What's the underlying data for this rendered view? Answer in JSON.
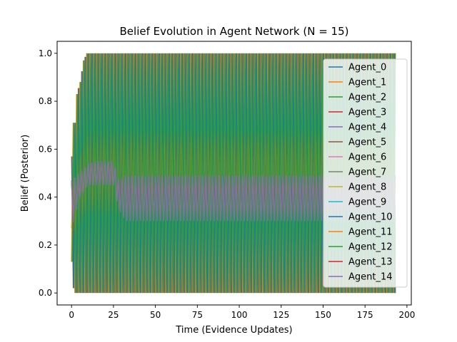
{
  "chart_data": {
    "type": "line",
    "title": "Belief Evolution in Agent Network (N = 15)",
    "xlabel": "Time (Evidence Updates)",
    "ylabel": "Belief (Posterior)",
    "xlim": [
      -8.6,
      202.6
    ],
    "ylim": [
      -0.05,
      1.05
    ],
    "xticks": [
      0,
      25,
      50,
      75,
      100,
      125,
      150,
      175,
      200
    ],
    "xtick_labels": [
      "0",
      "25",
      "50",
      "75",
      "100",
      "125",
      "150",
      "175",
      "200"
    ],
    "yticks": [
      0.0,
      0.2,
      0.4,
      0.6,
      0.8,
      1.0
    ],
    "ytick_labels": [
      "0.0",
      "0.2",
      "0.4",
      "0.6",
      "0.8",
      "1.0"
    ],
    "grid": false,
    "legend_position": "right",
    "x_range": [
      0,
      193
    ],
    "series": [
      {
        "name": "Agent_0",
        "color": "#1f77b4"
      },
      {
        "name": "Agent_1",
        "color": "#ff7f0e"
      },
      {
        "name": "Agent_2",
        "color": "#2ca02c"
      },
      {
        "name": "Agent_3",
        "color": "#d62728"
      },
      {
        "name": "Agent_4",
        "color": "#9467bd"
      },
      {
        "name": "Agent_5",
        "color": "#8c564b"
      },
      {
        "name": "Agent_6",
        "color": "#e377c2"
      },
      {
        "name": "Agent_7",
        "color": "#7f7f7f"
      },
      {
        "name": "Agent_8",
        "color": "#bcbd22"
      },
      {
        "name": "Agent_9",
        "color": "#17becf"
      },
      {
        "name": "Agent_10",
        "color": "#1f77b4"
      },
      {
        "name": "Agent_11",
        "color": "#ff7f0e"
      },
      {
        "name": "Agent_12",
        "color": "#2ca02c"
      },
      {
        "name": "Agent_13",
        "color": "#d62728"
      },
      {
        "name": "Agent_14",
        "color": "#9467bd"
      }
    ],
    "envelope_outer": [
      {
        "x": 0,
        "low": 0.13,
        "high": 0.57
      },
      {
        "x": 1,
        "low": 0.02,
        "high": 0.71
      },
      {
        "x": 2,
        "low": 0.0,
        "high": 0.71
      },
      {
        "x": 3,
        "low": 0.0,
        "high": 0.83
      },
      {
        "x": 5,
        "low": 0.0,
        "high": 0.88
      },
      {
        "x": 7,
        "low": 0.0,
        "high": 0.97
      },
      {
        "x": 9,
        "low": 0.0,
        "high": 1.0
      },
      {
        "x": 193,
        "low": 0.0,
        "high": 1.0
      }
    ],
    "envelope_inner": [
      {
        "x": 0,
        "low": 0.27,
        "high": 0.47
      },
      {
        "x": 5,
        "low": 0.4,
        "high": 0.5
      },
      {
        "x": 10,
        "low": 0.45,
        "high": 0.54
      },
      {
        "x": 15,
        "low": 0.45,
        "high": 0.55
      },
      {
        "x": 25,
        "low": 0.45,
        "high": 0.55
      },
      {
        "x": 28,
        "low": 0.35,
        "high": 0.47
      },
      {
        "x": 32,
        "low": 0.3,
        "high": 0.49
      },
      {
        "x": 193,
        "low": 0.3,
        "high": 0.49
      }
    ]
  }
}
